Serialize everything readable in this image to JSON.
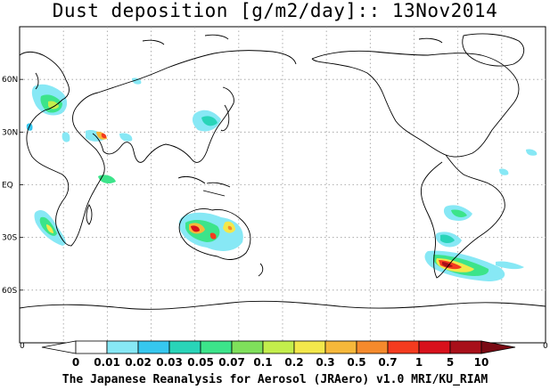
{
  "title": "Dust deposition [g/m2/day]:: 13Nov2014",
  "credit": "The Japanese Reanalysis for Aerosol (JRAero) v1.0 MRI/KU_RIAM",
  "map": {
    "lat_labels": [
      "60N",
      "30N",
      "EQ",
      "30S",
      "60S"
    ],
    "lat_values": [
      60,
      30,
      0,
      -30,
      -60
    ],
    "lon_range": [
      0,
      360
    ],
    "lat_range": [
      -90,
      90
    ],
    "grid": "dotted"
  },
  "colorbar": {
    "edge_left": "0",
    "edge_right": "0",
    "levels": [
      "0",
      "0.01",
      "0.02",
      "0.03",
      "0.05",
      "0.07",
      "0.1",
      "0.2",
      "0.3",
      "0.5",
      "0.7",
      "1",
      "5",
      "10"
    ],
    "colors": [
      "#ffffff",
      "#87e8f5",
      "#36c7ef",
      "#29d4b8",
      "#3ce48a",
      "#7fe05b",
      "#c3ee4c",
      "#f3e84b",
      "#f6b83a",
      "#f58a2c",
      "#f43b1f",
      "#d8111c",
      "#a8101a",
      "#7a0a14"
    ]
  },
  "dust_regions": [
    {
      "lon": 12,
      "lat": 42,
      "value": 0.1
    },
    {
      "lon": 18,
      "lat": 36,
      "value": 0.07
    },
    {
      "lon": 30,
      "lat": 32,
      "value": 0.05
    },
    {
      "lon": 47,
      "lat": 27,
      "value": 0.5
    },
    {
      "lon": 36,
      "lat": 8,
      "value": 0.03
    },
    {
      "lon": 22,
      "lat": -27,
      "value": 0.1
    },
    {
      "lon": 123,
      "lat": -24,
      "value": 1
    },
    {
      "lon": 140,
      "lat": -27,
      "value": 0.3
    },
    {
      "lon": 137,
      "lat": 35,
      "value": 0.05
    },
    {
      "lon": 299,
      "lat": -30,
      "value": 0.07
    },
    {
      "lon": 295,
      "lat": -44,
      "value": 0.3
    },
    {
      "lon": 290,
      "lat": -50,
      "value": 5
    },
    {
      "lon": 303,
      "lat": -50,
      "value": 0.5
    },
    {
      "lon": 310,
      "lat": 25,
      "value": 0.01
    }
  ]
}
